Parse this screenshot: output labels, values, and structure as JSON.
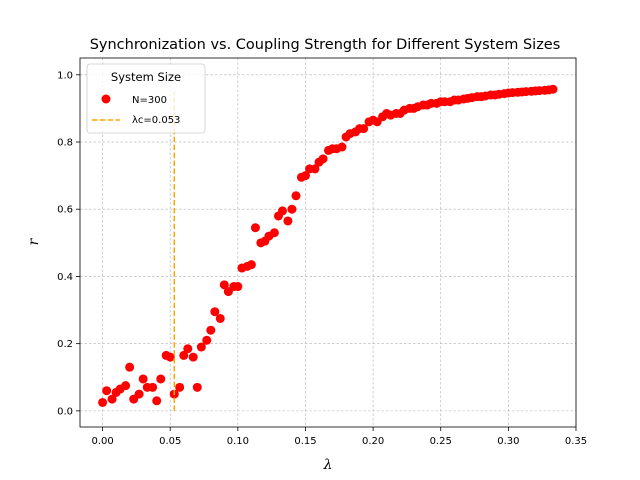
{
  "chart_data": {
    "type": "scatter",
    "title": "Synchronization vs. Coupling Strength for Different System Sizes",
    "xlabel": "λ",
    "ylabel": "r",
    "xlim": [
      -0.0167,
      0.35
    ],
    "ylim": [
      -0.048,
      1.05
    ],
    "xticks": [
      0.0,
      0.05,
      0.1,
      0.15,
      0.2,
      0.25,
      0.3,
      0.35
    ],
    "xtick_labels": [
      "0.00",
      "0.05",
      "0.10",
      "0.15",
      "0.20",
      "0.25",
      "0.30",
      "0.35"
    ],
    "yticks": [
      0.0,
      0.2,
      0.4,
      0.6,
      0.8,
      1.0
    ],
    "ytick_labels": [
      "0.0",
      "0.2",
      "0.4",
      "0.6",
      "0.8",
      "1.0"
    ],
    "grid": true,
    "legend": {
      "title": "System Size",
      "placement": "top-left"
    },
    "series": [
      {
        "name": "N=300",
        "kind": "scatter",
        "color": "#ff0000",
        "x": [
          0.0,
          0.003,
          0.007,
          0.01,
          0.013,
          0.017,
          0.02,
          0.023,
          0.027,
          0.03,
          0.033,
          0.037,
          0.04,
          0.043,
          0.047,
          0.05,
          0.053,
          0.057,
          0.06,
          0.063,
          0.067,
          0.07,
          0.073,
          0.077,
          0.08,
          0.083,
          0.087,
          0.09,
          0.093,
          0.097,
          0.1,
          0.103,
          0.107,
          0.11,
          0.113,
          0.117,
          0.12,
          0.123,
          0.127,
          0.13,
          0.133,
          0.137,
          0.14,
          0.143,
          0.147,
          0.15,
          0.153,
          0.157,
          0.16,
          0.163,
          0.167,
          0.17,
          0.173,
          0.177,
          0.18,
          0.183,
          0.187,
          0.19,
          0.193,
          0.197,
          0.2,
          0.203,
          0.207,
          0.21,
          0.213,
          0.217,
          0.22,
          0.223,
          0.227,
          0.23,
          0.233,
          0.237,
          0.24,
          0.243,
          0.247,
          0.25,
          0.253,
          0.257,
          0.26,
          0.263,
          0.267,
          0.27,
          0.273,
          0.277,
          0.28,
          0.283,
          0.287,
          0.29,
          0.293,
          0.297,
          0.3,
          0.303,
          0.307,
          0.31,
          0.313,
          0.317,
          0.32,
          0.323,
          0.327,
          0.33,
          0.333
        ],
        "y": [
          0.025,
          0.06,
          0.035,
          0.055,
          0.065,
          0.075,
          0.13,
          0.035,
          0.05,
          0.095,
          0.07,
          0.07,
          0.03,
          0.095,
          0.165,
          0.16,
          0.05,
          0.07,
          0.165,
          0.185,
          0.16,
          0.07,
          0.19,
          0.21,
          0.24,
          0.295,
          0.275,
          0.375,
          0.355,
          0.37,
          0.37,
          0.425,
          0.43,
          0.435,
          0.545,
          0.5,
          0.505,
          0.52,
          0.53,
          0.58,
          0.595,
          0.565,
          0.6,
          0.64,
          0.695,
          0.7,
          0.72,
          0.72,
          0.74,
          0.75,
          0.775,
          0.78,
          0.78,
          0.785,
          0.815,
          0.825,
          0.83,
          0.84,
          0.84,
          0.86,
          0.865,
          0.86,
          0.875,
          0.885,
          0.88,
          0.885,
          0.885,
          0.895,
          0.9,
          0.9,
          0.905,
          0.91,
          0.91,
          0.915,
          0.915,
          0.92,
          0.92,
          0.92,
          0.925,
          0.925,
          0.928,
          0.93,
          0.932,
          0.935,
          0.935,
          0.937,
          0.94,
          0.94,
          0.942,
          0.944,
          0.946,
          0.947,
          0.948,
          0.949,
          0.95,
          0.951,
          0.952,
          0.953,
          0.954,
          0.955,
          0.957
        ]
      },
      {
        "name": "λc=0.053",
        "kind": "vline",
        "color": "#ffa500",
        "x": 0.053,
        "y_range": [
          0.0,
          0.95
        ]
      }
    ]
  }
}
